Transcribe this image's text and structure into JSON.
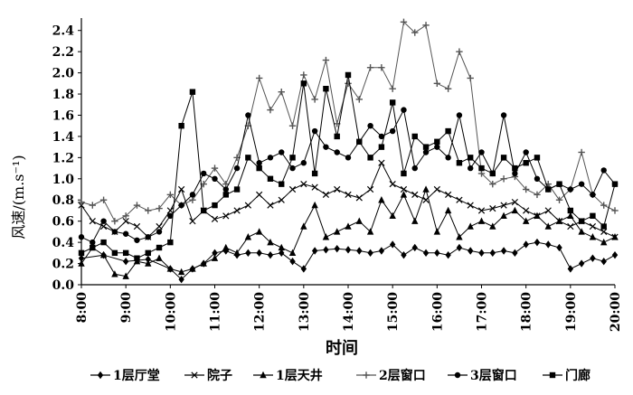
{
  "chart_data": {
    "type": "line",
    "title": "",
    "xlabel": "时间",
    "ylabel": "风速/(m.s⁻¹)",
    "ylim": [
      0,
      2.5
    ],
    "yticks": [
      "0.0",
      "0.2",
      "0.4",
      "0.6",
      "0.8",
      "1.0",
      "1.2",
      "1.4",
      "1.6",
      "1.8",
      "2.0",
      "2.2",
      "2.4"
    ],
    "xlim": [
      8,
      20
    ],
    "xticks": [
      "8:00",
      "9:00",
      "10:00",
      "11:00",
      "12:00",
      "13:00",
      "14:00",
      "15:00",
      "16:00",
      "17:00",
      "18:00",
      "19:00",
      "20:00"
    ],
    "grid": false,
    "legend_position": "bottom",
    "series": [
      {
        "name": "1层厅堂",
        "marker": "diamond",
        "color": "#000000",
        "x": [
          8.0,
          8.5,
          9.0,
          9.5,
          10.0,
          10.25,
          10.5,
          10.75,
          11.0,
          11.25,
          11.5,
          11.75,
          12.0,
          12.25,
          12.5,
          12.75,
          13.0,
          13.25,
          13.5,
          13.75,
          14.0,
          14.25,
          14.5,
          14.75,
          15.0,
          15.25,
          15.5,
          15.75,
          16.0,
          16.25,
          16.5,
          16.75,
          17.0,
          17.25,
          17.5,
          17.75,
          18.0,
          18.25,
          18.5,
          18.75,
          19.0,
          19.25,
          19.5,
          19.75,
          20.0
        ],
        "y": [
          0.25,
          0.28,
          0.22,
          0.24,
          0.15,
          0.05,
          0.15,
          0.2,
          0.3,
          0.32,
          0.28,
          0.3,
          0.3,
          0.28,
          0.3,
          0.22,
          0.15,
          0.32,
          0.33,
          0.34,
          0.33,
          0.32,
          0.3,
          0.32,
          0.38,
          0.28,
          0.35,
          0.3,
          0.3,
          0.28,
          0.35,
          0.32,
          0.3,
          0.3,
          0.32,
          0.3,
          0.38,
          0.4,
          0.38,
          0.35,
          0.15,
          0.2,
          0.25,
          0.22,
          0.28
        ]
      },
      {
        "name": "院子",
        "marker": "x",
        "color": "#000000",
        "x": [
          8.0,
          8.25,
          8.5,
          8.75,
          9.0,
          9.25,
          9.5,
          9.75,
          10.0,
          10.25,
          10.5,
          10.75,
          11.0,
          11.25,
          11.5,
          11.75,
          12.0,
          12.25,
          12.5,
          12.75,
          13.0,
          13.25,
          13.5,
          13.75,
          14.0,
          14.25,
          14.5,
          14.75,
          15.0,
          15.25,
          15.5,
          15.75,
          16.0,
          16.25,
          16.5,
          16.75,
          17.0,
          17.25,
          17.5,
          17.75,
          18.0,
          18.25,
          18.5,
          18.75,
          19.0,
          19.25,
          19.5,
          19.75,
          20.0
        ],
        "y": [
          0.75,
          0.6,
          0.55,
          0.5,
          0.6,
          0.55,
          0.45,
          0.55,
          0.7,
          0.9,
          0.6,
          0.7,
          0.62,
          0.65,
          0.7,
          0.75,
          0.85,
          0.75,
          0.8,
          0.9,
          0.95,
          0.92,
          0.85,
          0.9,
          0.85,
          0.82,
          0.9,
          1.15,
          0.95,
          0.9,
          0.85,
          0.8,
          0.9,
          0.85,
          0.8,
          0.75,
          0.7,
          0.72,
          0.75,
          0.78,
          0.7,
          0.65,
          0.7,
          0.6,
          0.55,
          0.6,
          0.55,
          0.5,
          0.45
        ]
      },
      {
        "name": "1层天井",
        "marker": "triangle",
        "color": "#000000",
        "x": [
          8.0,
          8.25,
          8.5,
          8.75,
          9.0,
          9.25,
          9.5,
          9.75,
          10.0,
          10.25,
          10.5,
          10.75,
          11.0,
          11.25,
          11.5,
          11.75,
          12.0,
          12.25,
          12.5,
          12.75,
          13.0,
          13.25,
          13.5,
          13.75,
          14.0,
          14.25,
          14.5,
          14.75,
          15.0,
          15.25,
          15.5,
          15.75,
          16.0,
          16.25,
          16.5,
          16.75,
          17.0,
          17.25,
          17.5,
          17.75,
          18.0,
          18.25,
          18.5,
          18.75,
          19.0,
          19.25,
          19.5,
          19.75,
          20.0
        ],
        "y": [
          0.2,
          0.35,
          0.28,
          0.1,
          0.08,
          0.22,
          0.2,
          0.25,
          0.15,
          0.12,
          0.15,
          0.2,
          0.25,
          0.35,
          0.3,
          0.45,
          0.5,
          0.4,
          0.35,
          0.3,
          0.55,
          0.75,
          0.45,
          0.5,
          0.55,
          0.6,
          0.5,
          0.8,
          0.65,
          0.85,
          0.6,
          0.9,
          0.5,
          0.7,
          0.45,
          0.55,
          0.6,
          0.55,
          0.65,
          0.7,
          0.6,
          0.65,
          0.55,
          0.6,
          0.65,
          0.5,
          0.45,
          0.4,
          0.45
        ]
      },
      {
        "name": "2层窗口",
        "marker": "plus",
        "color": "#555555",
        "x": [
          8.0,
          8.25,
          8.5,
          8.75,
          9.0,
          9.25,
          9.5,
          9.75,
          10.0,
          10.25,
          10.5,
          10.75,
          11.0,
          11.25,
          11.5,
          11.75,
          12.0,
          12.25,
          12.5,
          12.75,
          13.0,
          13.25,
          13.5,
          13.75,
          14.0,
          14.25,
          14.5,
          14.75,
          15.0,
          15.25,
          15.5,
          15.75,
          16.0,
          16.25,
          16.5,
          16.75,
          17.0,
          17.25,
          17.5,
          17.75,
          18.0,
          18.25,
          18.5,
          18.75,
          19.0,
          19.25,
          19.5,
          19.75,
          20.0
        ],
        "y": [
          0.78,
          0.75,
          0.8,
          0.6,
          0.65,
          0.75,
          0.7,
          0.72,
          0.85,
          0.75,
          0.8,
          0.95,
          1.1,
          0.95,
          1.2,
          1.5,
          1.95,
          1.65,
          1.82,
          1.5,
          1.98,
          1.75,
          2.12,
          1.52,
          1.9,
          1.75,
          2.05,
          2.05,
          1.85,
          2.48,
          2.38,
          2.45,
          1.9,
          1.85,
          2.2,
          1.95,
          1.05,
          0.95,
          1.0,
          1.02,
          0.9,
          0.85,
          0.95,
          0.8,
          0.9,
          1.25,
          0.85,
          0.75,
          0.7
        ]
      },
      {
        "name": "3层窗口",
        "marker": "circle",
        "color": "#000000",
        "x": [
          8.0,
          8.25,
          8.5,
          8.75,
          9.0,
          9.25,
          9.5,
          9.75,
          10.0,
          10.25,
          10.5,
          10.75,
          11.0,
          11.25,
          11.5,
          11.75,
          12.0,
          12.25,
          12.5,
          12.75,
          13.0,
          13.25,
          13.5,
          13.75,
          14.0,
          14.25,
          14.5,
          14.75,
          15.0,
          15.25,
          15.5,
          15.75,
          16.0,
          16.25,
          16.5,
          16.75,
          17.0,
          17.25,
          17.5,
          17.75,
          18.0,
          18.25,
          18.5,
          18.75,
          19.0,
          19.25,
          19.5,
          19.75,
          20.0
        ],
        "y": [
          0.45,
          0.4,
          0.6,
          0.5,
          0.48,
          0.42,
          0.45,
          0.5,
          0.65,
          0.75,
          0.85,
          1.05,
          1.0,
          0.9,
          1.1,
          1.6,
          1.15,
          1.2,
          1.25,
          1.1,
          1.15,
          1.45,
          1.3,
          1.25,
          1.2,
          1.35,
          1.5,
          1.4,
          1.45,
          1.65,
          1.1,
          1.25,
          1.3,
          1.2,
          1.6,
          1.1,
          1.25,
          1.05,
          1.6,
          1.05,
          1.25,
          1.0,
          0.9,
          0.95,
          0.9,
          0.95,
          0.85,
          1.08,
          0.95
        ]
      },
      {
        "name": "门廊",
        "marker": "square",
        "color": "#000000",
        "x": [
          8.0,
          8.25,
          8.5,
          8.75,
          9.0,
          9.25,
          9.5,
          9.75,
          10.0,
          10.25,
          10.5,
          10.75,
          11.0,
          11.25,
          11.5,
          11.75,
          12.0,
          12.25,
          12.5,
          12.75,
          13.0,
          13.25,
          13.5,
          13.75,
          14.0,
          14.25,
          14.5,
          14.75,
          15.0,
          15.25,
          15.5,
          15.75,
          16.0,
          16.25,
          16.5,
          16.75,
          17.0,
          17.25,
          17.5,
          17.75,
          18.0,
          18.25,
          18.5,
          18.75,
          19.0,
          19.25,
          19.5,
          19.75,
          20.0
        ],
        "y": [
          0.3,
          0.35,
          0.4,
          0.3,
          0.3,
          0.25,
          0.3,
          0.35,
          0.4,
          1.5,
          1.82,
          0.7,
          0.75,
          0.85,
          0.9,
          1.2,
          1.1,
          1.0,
          0.95,
          1.2,
          1.9,
          1.05,
          1.85,
          1.4,
          1.98,
          1.35,
          1.2,
          1.3,
          1.72,
          1.05,
          1.4,
          1.3,
          1.35,
          1.45,
          1.15,
          1.2,
          1.1,
          1.05,
          1.2,
          1.1,
          1.15,
          1.2,
          0.9,
          0.95,
          0.7,
          0.6,
          0.65,
          0.55,
          0.95
        ]
      }
    ]
  }
}
